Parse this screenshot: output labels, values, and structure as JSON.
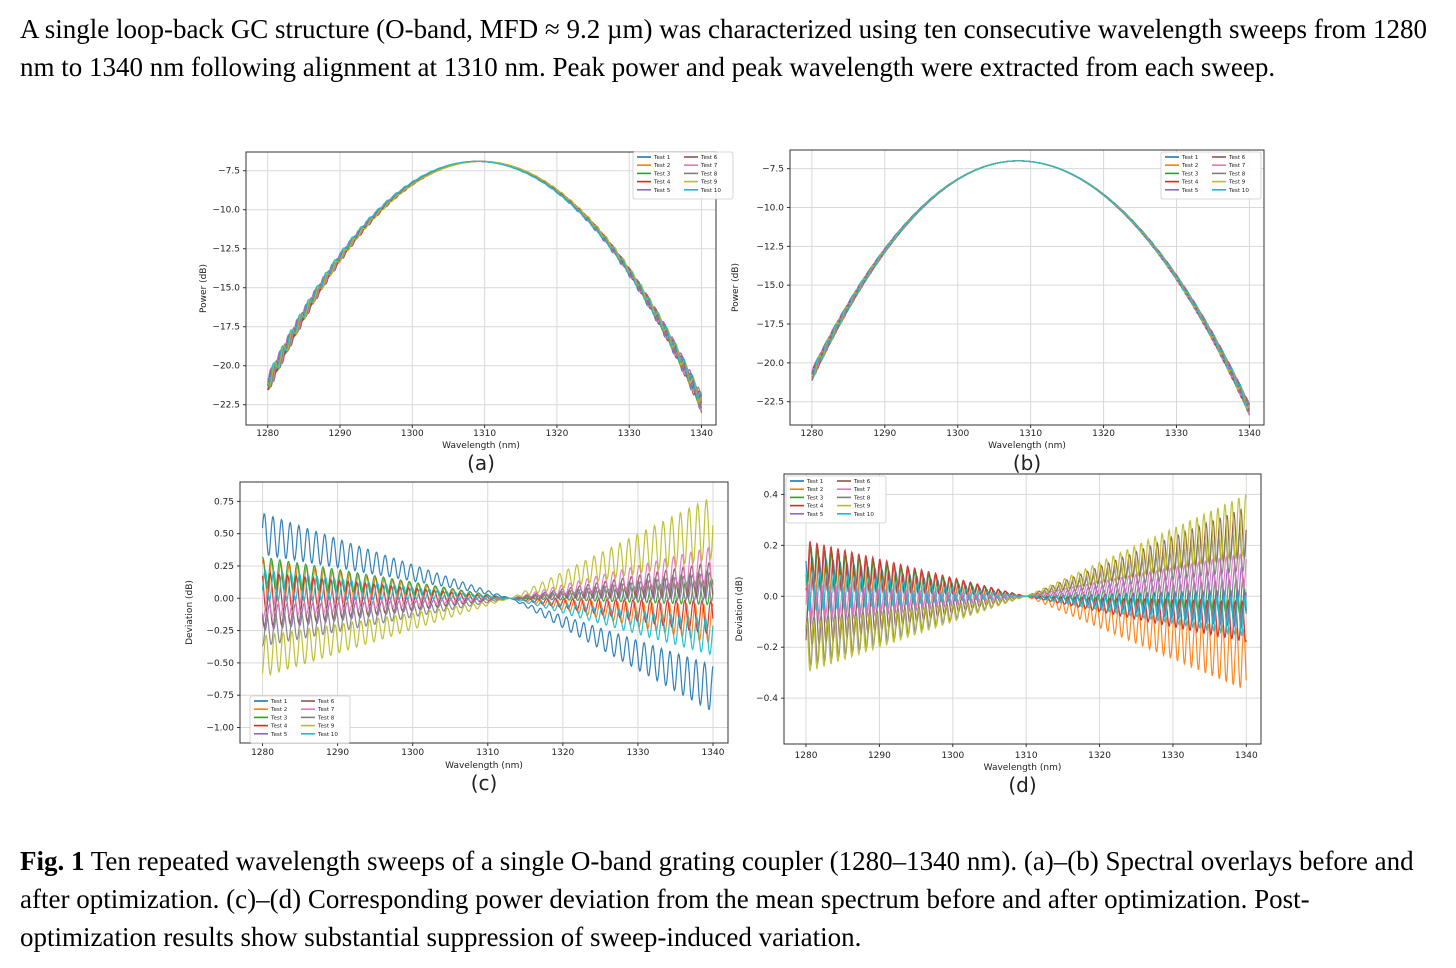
{
  "intro_text": "A single loop-back GC structure (O-band, MFD ≈ 9.2 µm) was characterized using ten consecutive wavelength sweeps from 1280 nm to 1340 nm following alignment at 1310 nm. Peak power and peak wavelength were extracted from each sweep.",
  "caption": {
    "label": "Fig. 1",
    "text": " Ten repeated wavelength sweeps of a single O-band grating coupler (1280–1340 nm). (a)–(b) Spectral overlays before and after optimization. (c)–(d) Corresponding power deviation from the mean spectrum before and after optimization. Post-optimization results show substantial suppression of sweep-induced variation."
  },
  "colors": {
    "series": [
      "#1f77b4",
      "#ff7f0e",
      "#2ca02c",
      "#d62728",
      "#9467bd",
      "#8c564b",
      "#e377c2",
      "#7f7f7f",
      "#bcbd22",
      "#17becf"
    ],
    "grid": "#d9d9d9",
    "axis": "#333333"
  },
  "chart_data": [
    {
      "id": "a",
      "panel_label": "(a)",
      "type": "line",
      "xlabel": "Wavelength (nm)",
      "ylabel": "Power (dB)",
      "xlim": [
        1277,
        1342
      ],
      "ylim": [
        -23.8,
        -6.3
      ],
      "xticks": [
        1280,
        1290,
        1300,
        1310,
        1320,
        1330,
        1340
      ],
      "yticks": [
        -7.5,
        -10.0,
        -12.5,
        -15.0,
        -17.5,
        -20.0,
        -22.5
      ],
      "ytick_labels": [
        "−7.5",
        "−10.0",
        "−12.5",
        "−15.0",
        "−17.5",
        "−20.0",
        "−22.5"
      ],
      "legend": [
        "Test 1",
        "Test 2",
        "Test 3",
        "Test 4",
        "Test 5",
        "Test 6",
        "Test 7",
        "Test 8",
        "Test 9",
        "Test 10"
      ],
      "legend_position": "top-right",
      "model": {
        "kind": "parabola",
        "center": 1309.2,
        "peak": -6.9,
        "left_end": -21.2,
        "right_end": -22.4,
        "spread": 0.35,
        "ripple": 0.45
      },
      "series": [
        {
          "name": "Test 1",
          "peak_dB": -6.9,
          "peak_wl_nm": 1309.0
        },
        {
          "name": "Test 2",
          "peak_dB": -6.9,
          "peak_wl_nm": 1309.4
        },
        {
          "name": "Test 3",
          "peak_dB": -6.9,
          "peak_wl_nm": 1309.1
        },
        {
          "name": "Test 4",
          "peak_dB": -6.9,
          "peak_wl_nm": 1309.3
        },
        {
          "name": "Test 5",
          "peak_dB": -6.9,
          "peak_wl_nm": 1309.0
        },
        {
          "name": "Test 6",
          "peak_dB": -6.9,
          "peak_wl_nm": 1309.5
        },
        {
          "name": "Test 7",
          "peak_dB": -6.9,
          "peak_wl_nm": 1309.2
        },
        {
          "name": "Test 8",
          "peak_dB": -6.9,
          "peak_wl_nm": 1309.1
        },
        {
          "name": "Test 9",
          "peak_dB": -6.9,
          "peak_wl_nm": 1309.6
        },
        {
          "name": "Test 10",
          "peak_dB": -6.9,
          "peak_wl_nm": 1308.8
        }
      ]
    },
    {
      "id": "b",
      "panel_label": "(b)",
      "type": "line",
      "xlabel": "Wavelength (nm)",
      "ylabel": "Power (dB)",
      "xlim": [
        1277,
        1342
      ],
      "ylim": [
        -24.0,
        -6.3
      ],
      "xticks": [
        1280,
        1290,
        1300,
        1310,
        1320,
        1330,
        1340
      ],
      "yticks": [
        -7.5,
        -10.0,
        -12.5,
        -15.0,
        -17.5,
        -20.0,
        -22.5
      ],
      "ytick_labels": [
        "−7.5",
        "−10.0",
        "−12.5",
        "−15.0",
        "−17.5",
        "−20.0",
        "−22.5"
      ],
      "legend": [
        "Test 1",
        "Test 2",
        "Test 3",
        "Test 4",
        "Test 5",
        "Test 6",
        "Test 7",
        "Test 8",
        "Test 9",
        "Test 10"
      ],
      "legend_position": "top-right",
      "model": {
        "kind": "parabola",
        "center": 1308.3,
        "peak": -7.0,
        "left_end": -20.8,
        "right_end": -23.0,
        "spread": 0.08,
        "ripple": 0.35
      },
      "series": [
        {
          "name": "Test 1",
          "peak_dB": -7.0,
          "peak_wl_nm": 1308.3
        },
        {
          "name": "Test 2",
          "peak_dB": -7.0,
          "peak_wl_nm": 1308.3
        },
        {
          "name": "Test 3",
          "peak_dB": -7.0,
          "peak_wl_nm": 1308.3
        },
        {
          "name": "Test 4",
          "peak_dB": -7.0,
          "peak_wl_nm": 1308.3
        },
        {
          "name": "Test 5",
          "peak_dB": -7.0,
          "peak_wl_nm": 1308.3
        },
        {
          "name": "Test 6",
          "peak_dB": -7.0,
          "peak_wl_nm": 1308.3
        },
        {
          "name": "Test 7",
          "peak_dB": -7.0,
          "peak_wl_nm": 1308.3
        },
        {
          "name": "Test 8",
          "peak_dB": -7.0,
          "peak_wl_nm": 1308.3
        },
        {
          "name": "Test 9",
          "peak_dB": -7.0,
          "peak_wl_nm": 1308.3
        },
        {
          "name": "Test 10",
          "peak_dB": -7.0,
          "peak_wl_nm": 1308.3
        }
      ]
    },
    {
      "id": "c",
      "panel_label": "(c)",
      "type": "line",
      "xlabel": "Wavelength (nm)",
      "ylabel": "Deviation (dB)",
      "xlim": [
        1277,
        1342
      ],
      "ylim": [
        -1.12,
        0.9
      ],
      "xticks": [
        1280,
        1290,
        1300,
        1310,
        1320,
        1330,
        1340
      ],
      "yticks": [
        0.75,
        0.5,
        0.25,
        0.0,
        -0.25,
        -0.5,
        -0.75,
        -1.0
      ],
      "ytick_labels": [
        "0.75",
        "0.50",
        "0.25",
        "0.00",
        "−0.25",
        "−0.50",
        "−0.75",
        "−1.00"
      ],
      "legend": [
        "Test 1",
        "Test 2",
        "Test 3",
        "Test 4",
        "Test 5",
        "Test 6",
        "Test 7",
        "Test 8",
        "Test 9",
        "Test 10"
      ],
      "legend_position": "bottom-left",
      "model": {
        "kind": "deviation",
        "null_at": 1313.0,
        "ripple_period_nm": 1.15
      },
      "series": [
        {
          "name": "Test 1",
          "left_offset": 0.5,
          "right_offset": -0.7,
          "left_amp": 0.16,
          "right_amp": 0.18
        },
        {
          "name": "Test 2",
          "left_offset": 0.15,
          "right_offset": -0.2,
          "left_amp": 0.15,
          "right_amp": 0.15
        },
        {
          "name": "Test 3",
          "left_offset": 0.2,
          "right_offset": 0.05,
          "left_amp": 0.12,
          "right_amp": 0.1
        },
        {
          "name": "Test 4",
          "left_offset": 0.05,
          "right_offset": -0.15,
          "left_amp": 0.15,
          "right_amp": 0.13
        },
        {
          "name": "Test 5",
          "left_offset": -0.15,
          "right_offset": 0.1,
          "left_amp": 0.1,
          "right_amp": 0.1
        },
        {
          "name": "Test 6",
          "left_offset": -0.1,
          "right_offset": 0.15,
          "left_amp": 0.12,
          "right_amp": 0.13
        },
        {
          "name": "Test 7",
          "left_offset": -0.05,
          "right_offset": 0.25,
          "left_amp": 0.1,
          "right_amp": 0.15
        },
        {
          "name": "Test 8",
          "left_offset": -0.25,
          "right_offset": 0.1,
          "left_amp": 0.12,
          "right_amp": 0.12
        },
        {
          "name": "Test 9",
          "left_offset": -0.45,
          "right_offset": 0.55,
          "left_amp": 0.16,
          "right_amp": 0.24
        },
        {
          "name": "Test 10",
          "left_offset": 0.1,
          "right_offset": -0.3,
          "left_amp": 0.12,
          "right_amp": 0.14
        }
      ]
    },
    {
      "id": "d",
      "panel_label": "(d)",
      "type": "line",
      "xlabel": "Wavelength (nm)",
      "ylabel": "Deviation (dB)",
      "xlim": [
        1277,
        1342
      ],
      "ylim": [
        -0.58,
        0.48
      ],
      "xticks": [
        1280,
        1290,
        1300,
        1310,
        1320,
        1330,
        1340
      ],
      "yticks": [
        0.4,
        0.2,
        0.0,
        -0.2,
        -0.4
      ],
      "ytick_labels": [
        "0.4",
        "0.2",
        "0.0",
        "−0.2",
        "−0.4"
      ],
      "legend": [
        "Test 1",
        "Test 2",
        "Test 3",
        "Test 4",
        "Test 5",
        "Test 6",
        "Test 7",
        "Test 8",
        "Test 9",
        "Test 10"
      ],
      "legend_position": "top-left",
      "model": {
        "kind": "deviation",
        "null_at": 1310.0,
        "ripple_period_nm": 0.95
      },
      "series": [
        {
          "name": "Test 1",
          "left_offset": 0.08,
          "right_offset": -0.05,
          "left_amp": 0.08,
          "right_amp": 0.08
        },
        {
          "name": "Test 2",
          "left_offset": 0.05,
          "right_offset": -0.25,
          "left_amp": 0.08,
          "right_amp": 0.12
        },
        {
          "name": "Test 3",
          "left_offset": 0.12,
          "right_offset": 0.0,
          "left_amp": 0.08,
          "right_amp": 0.07
        },
        {
          "name": "Test 4",
          "left_offset": 0.12,
          "right_offset": -0.1,
          "left_amp": 0.1,
          "right_amp": 0.08
        },
        {
          "name": "Test 5",
          "left_offset": -0.05,
          "right_offset": 0.05,
          "left_amp": 0.07,
          "right_amp": 0.07
        },
        {
          "name": "Test 6",
          "left_offset": -0.1,
          "right_offset": 0.25,
          "left_amp": 0.1,
          "right_amp": 0.1
        },
        {
          "name": "Test 7",
          "left_offset": -0.02,
          "right_offset": 0.1,
          "left_amp": 0.07,
          "right_amp": 0.07
        },
        {
          "name": "Test 8",
          "left_offset": -0.18,
          "right_offset": 0.18,
          "left_amp": 0.1,
          "right_amp": 0.08
        },
        {
          "name": "Test 9",
          "left_offset": -0.2,
          "right_offset": 0.28,
          "left_amp": 0.1,
          "right_amp": 0.12
        },
        {
          "name": "Test 10",
          "left_offset": 0.02,
          "right_offset": -0.08,
          "left_amp": 0.08,
          "right_amp": 0.08
        }
      ]
    }
  ]
}
